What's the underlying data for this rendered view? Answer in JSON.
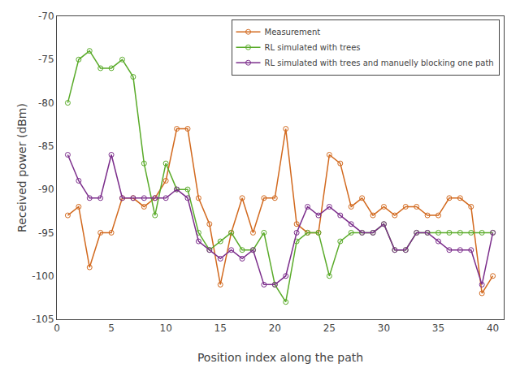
{
  "chart_data": {
    "type": "line",
    "xlabel": "Position index along the path",
    "ylabel": "Received power (dBm)",
    "x": [
      1,
      2,
      3,
      4,
      5,
      6,
      7,
      8,
      9,
      10,
      11,
      12,
      13,
      14,
      15,
      16,
      17,
      18,
      19,
      20,
      21,
      22,
      23,
      24,
      25,
      26,
      27,
      28,
      29,
      30,
      31,
      32,
      33,
      34,
      35,
      36,
      37,
      38,
      39,
      40
    ],
    "series": [
      {
        "name": "Measurement",
        "color": "#d2691e",
        "marker": "circle",
        "line_style": "solid",
        "values": [
          -93,
          -92,
          -99,
          -95,
          -95,
          -91,
          -91,
          -92,
          -91,
          -89,
          -83,
          -83,
          -91,
          -94,
          -101,
          -95,
          -91,
          -95,
          -91,
          -91,
          -83,
          -94,
          -95,
          -95,
          -86,
          -87,
          -92,
          -91,
          -93,
          -92,
          -93,
          -92,
          -92,
          -93,
          -93,
          -91,
          -91,
          -92,
          -102,
          -100
        ]
      },
      {
        "name": "RL simulated with trees",
        "color": "#5aab2a",
        "marker": "circle",
        "line_style": "solid",
        "values": [
          -80,
          -75,
          -74,
          -76,
          -76,
          -75,
          -77,
          -87,
          -93,
          -87,
          -90,
          -90,
          -95,
          -97,
          -96,
          -95,
          -97,
          -97,
          -95,
          -101,
          -103,
          -96,
          -95,
          -95,
          -100,
          -96,
          -95,
          -95,
          -95,
          -94,
          -97,
          -97,
          -95,
          -95,
          -95,
          -95,
          -95,
          -95,
          -95,
          -95
        ]
      },
      {
        "name": "RL simulated with trees and manuelly blocking one path",
        "color": "#7b2d8b",
        "marker": "circle",
        "line_style": "solid",
        "values": [
          -86,
          -89,
          -91,
          -91,
          -86,
          -91,
          -91,
          -91,
          -91,
          -91,
          -90,
          -91,
          -96,
          -97,
          -98,
          -97,
          -98,
          -97,
          -101,
          -101,
          -100,
          -95,
          -92,
          -93,
          -92,
          -93,
          -94,
          -95,
          -95,
          -94,
          -97,
          -97,
          -95,
          -95,
          -96,
          -97,
          -97,
          -97,
          -101,
          -95
        ]
      }
    ],
    "xlim": [
      0,
      41
    ],
    "ylim": [
      -105,
      -70
    ],
    "xticks": [
      0,
      5,
      10,
      15,
      20,
      25,
      30,
      35,
      40
    ],
    "yticks": [
      -70,
      -75,
      -80,
      -85,
      -90,
      -95,
      -100,
      -105
    ],
    "legend": "upper right",
    "grid": false
  }
}
